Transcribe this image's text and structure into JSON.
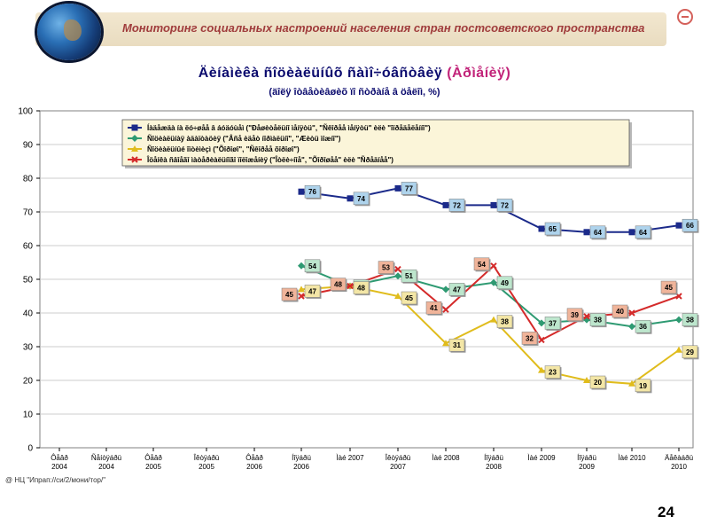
{
  "header": {
    "title": "Мониторинг социальных настроений населения стран постсоветского пространства",
    "page_number": "24",
    "source_note": "@ НЦ \"Ипрап://си/2/мони/тор/\""
  },
  "chart_data": {
    "type": "line",
    "title_main": "Äèíàìèêà ñîöèàëüíûõ ñàìî÷óâñòâèÿ",
    "title_accent": "(Àðìåíèÿ)",
    "subtitle": "(äîëÿ îòâåòèâøèõ ïî ñòðàíå â öåëîì, %)",
    "categories": [
      "Ôåâð 2004",
      "Ñåíòÿáðü 2004",
      "Ôåâð 2005",
      "Îêòÿáðü 2005",
      "Ôåâð 2006",
      "Íîÿáðü 2006",
      "Ìàé 2007",
      "Îêòÿáðü 2007",
      "Ìàé 2008",
      "Íîÿáðü 2008",
      "Ìàé 2009",
      "Íîÿáðü 2009",
      "Ìàé 2010",
      "Äåêàáðü 2010"
    ],
    "category_labels": [
      [
        "Ôåâð",
        "2004"
      ],
      [
        "Ñåíòÿáðü",
        "2004"
      ],
      [
        "Ôåâð",
        "2005"
      ],
      [
        "Îêòÿáðü",
        "2005"
      ],
      [
        "Ôåâð",
        "2006"
      ],
      [
        "Íîÿáðü",
        "2006"
      ],
      [
        "Ìàé 2007",
        ""
      ],
      [
        "Îêòÿáðü",
        "2007"
      ],
      [
        "Ìàé 2008",
        ""
      ],
      [
        "Íîÿáðü",
        "2008"
      ],
      [
        "Ìàé 2009",
        ""
      ],
      [
        "Íîÿáðü",
        "2009"
      ],
      [
        "Ìàé 2010",
        ""
      ],
      [
        "Äåêàáðü",
        "2010"
      ]
    ],
    "x_positions": [
      67,
      120,
      173,
      233,
      287,
      340,
      395,
      449,
      503,
      557,
      611,
      662,
      713,
      766
    ],
    "ylim": [
      0,
      100
    ],
    "yticks": [
      0,
      10,
      20,
      30,
      40,
      50,
      60,
      70,
      80,
      90,
      100
    ],
    "grid": true,
    "legend_position": "top",
    "series": [
      {
        "name": "Íàäåæäà íà ëó÷øåå â áóäóùåì (\"Ðåøèòåëüíî ìåíÿòü\", \"Ñêîðåå ìåíÿòü\" èëè \"îïðåäåëåííî\")",
        "color": "#1b2a8a",
        "marker": "square",
        "points": [
          [
            5,
            76
          ],
          [
            6,
            74
          ],
          [
            7,
            77
          ],
          [
            8,
            72
          ],
          [
            9,
            72
          ],
          [
            10,
            65
          ],
          [
            11,
            64
          ],
          [
            12,
            64
          ],
          [
            13,
            66
          ]
        ],
        "label_color": "#aed3ec"
      },
      {
        "name": "Ñîöèàëüíàÿ àäàïòàöèÿ (\"Âñå èäåò íîðìàëüíî\", \"Æèòü ìîæíî\")",
        "color": "#2e9a72",
        "marker": "diamond",
        "points": [
          [
            5,
            54
          ],
          [
            6,
            48
          ],
          [
            7,
            51
          ],
          [
            8,
            47
          ],
          [
            9,
            49
          ],
          [
            10,
            37
          ],
          [
            11,
            38
          ],
          [
            12,
            36
          ],
          [
            13,
            38
          ]
        ],
        "label_color": "#bde6cd"
      },
      {
        "name": "Ñîöèàëüíûé îïòèìèçì (\"Õîðîøî\", \"Ñêîðåå õîðîøî\")",
        "color": "#e0bc1c",
        "marker": "triangle",
        "points": [
          [
            5,
            47
          ],
          [
            6,
            48
          ],
          [
            7,
            45
          ],
          [
            8,
            31
          ],
          [
            9,
            38
          ],
          [
            10,
            23
          ],
          [
            11,
            20
          ],
          [
            12,
            19
          ],
          [
            13,
            29
          ]
        ],
        "label_color": "#f3e6a6"
      },
      {
        "name": "Îöåíêà ñâîåãî ìàòåðèàëüíîãî ïîëîæåíèÿ (\"Îòëè÷íîå\", \"Õîðîøåå\" èëè \"Ñðåäíåå\")",
        "color": "#d42a2a",
        "marker": "cross",
        "points": [
          [
            5,
            45
          ],
          [
            6,
            48
          ],
          [
            7,
            53
          ],
          [
            8,
            41
          ],
          [
            9,
            54
          ],
          [
            10,
            32
          ],
          [
            11,
            39
          ],
          [
            12,
            40
          ],
          [
            13,
            45
          ]
        ],
        "label_color": "#f0b49a"
      }
    ]
  }
}
